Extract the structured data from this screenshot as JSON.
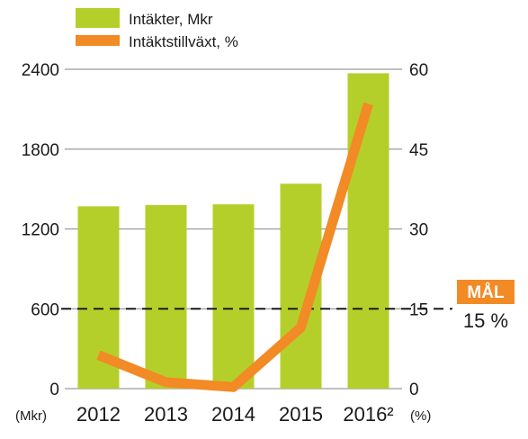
{
  "chart_data": {
    "type": "bar",
    "categories": [
      "2012",
      "2013",
      "2014",
      "2015",
      "2016²"
    ],
    "series": [
      {
        "name": "Intäkter, Mkr",
        "kind": "bar",
        "axis": "left",
        "color": "#b5cf2a",
        "values": [
          1370,
          1380,
          1385,
          1540,
          2370
        ]
      },
      {
        "name": "Intäktstillväxt, %",
        "kind": "line",
        "axis": "right",
        "color": "#f28a25",
        "values": [
          6.3,
          1.2,
          0.3,
          11.5,
          53.5
        ]
      }
    ],
    "y_left": {
      "ylim": [
        0,
        2400
      ],
      "ticks": [
        "0",
        "600",
        "1200",
        "1800",
        "2400"
      ],
      "unit_label": "(Mkr)"
    },
    "y_right": {
      "ylim": [
        0,
        60
      ],
      "ticks": [
        "0",
        "15",
        "30",
        "45",
        "60"
      ],
      "unit_label": "(%)"
    },
    "goal": {
      "label": "MÅL",
      "value_text": "15 %",
      "value": 15,
      "color": "#f28a25"
    },
    "grid": true,
    "legend_position": "top-left"
  }
}
